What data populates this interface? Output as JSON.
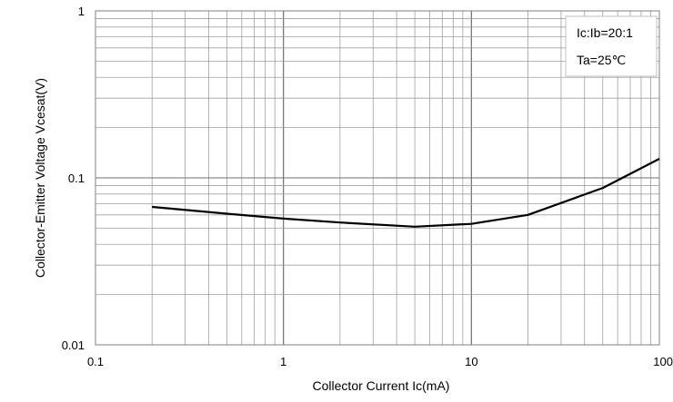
{
  "chart_data": {
    "type": "line",
    "title": "",
    "xlabel": "Collector Current   Ic(mA)",
    "ylabel": "Collector-Emitter Voltage   Vcesat(V)",
    "xscale": "log",
    "yscale": "log",
    "xlim": [
      0.1,
      100
    ],
    "ylim": [
      0.01,
      1
    ],
    "grid": true,
    "x_tick_labels": [
      "0.1",
      "1",
      "10",
      "100"
    ],
    "y_tick_labels": [
      "0.01",
      "0.1",
      "1"
    ],
    "annotations": [
      "Ic:Ib=20:1",
      "Ta=25℃"
    ],
    "annotation_placement": "top-right",
    "line_color": "#000000",
    "grid_color": "#a0a0a0",
    "series": [
      {
        "x": [
          0.2,
          0.5,
          1,
          2,
          5,
          10,
          20,
          50,
          100
        ],
        "y": [
          0.067,
          0.061,
          0.057,
          0.054,
          0.051,
          0.053,
          0.06,
          0.087,
          0.13
        ]
      }
    ]
  }
}
